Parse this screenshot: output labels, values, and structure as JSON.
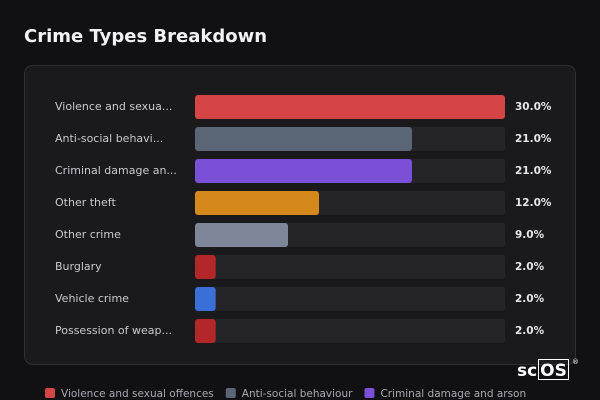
{
  "chart_data": {
    "type": "bar",
    "orientation": "horizontal",
    "title": "Crime Types Breakdown",
    "categories": [
      "Violence and sexua...",
      "Anti-social behavi...",
      "Criminal damage an...",
      "Other theft",
      "Other crime",
      "Burglary",
      "Vehicle crime",
      "Possession of weap..."
    ],
    "values": [
      30,
      21,
      21,
      12,
      9,
      2,
      2,
      2
    ],
    "value_labels": [
      "30.0%",
      "21.0%",
      "21.0%",
      "12.0%",
      "9.0%",
      "2.0%",
      "2.0%",
      "2.0%"
    ],
    "colors": [
      "#d64545",
      "#5a6576",
      "#7b4fd6",
      "#d4891a",
      "#7d8799",
      "#b3262a",
      "#3a6fd8",
      "#b3262a"
    ],
    "xlim": [
      0,
      30
    ],
    "legend": [
      "Violence and sexual offences",
      "Anti-social behaviour",
      "Criminal damage and arson"
    ]
  },
  "logo": {
    "plain": "sc",
    "boxed": "OS",
    "mark": "®"
  }
}
